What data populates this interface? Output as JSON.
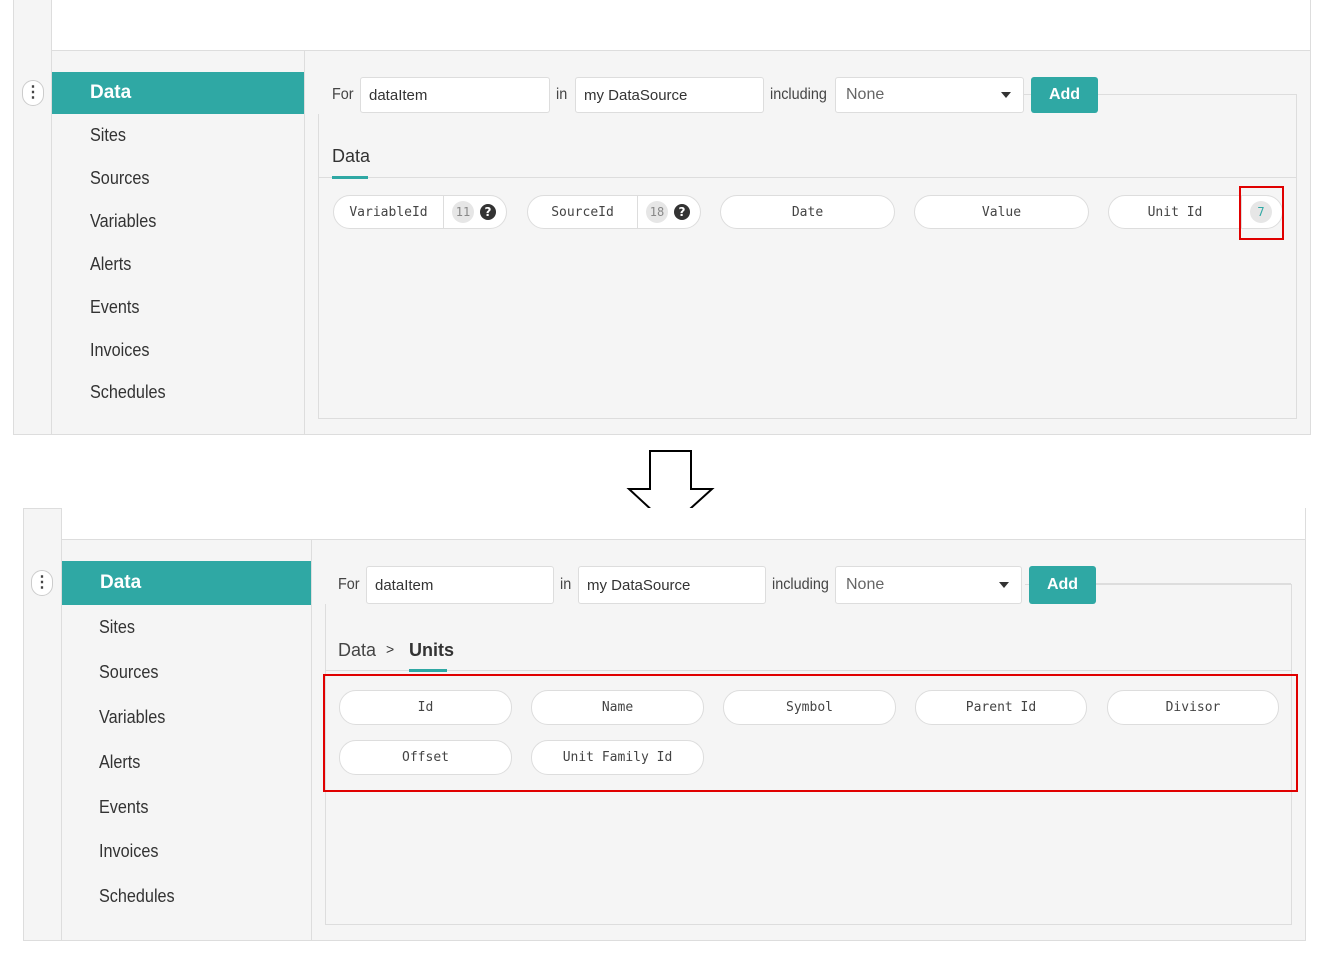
{
  "before": {
    "sidebar": {
      "items": [
        "Data",
        "Sites",
        "Sources",
        "Variables",
        "Alerts",
        "Events",
        "Invoices",
        "Schedules"
      ]
    },
    "query": {
      "for_label": "For",
      "item_value": "dataItem",
      "in_label": "in",
      "source_value": "my DataSource",
      "including_label": "including",
      "including_value": "None",
      "add_label": "Add"
    },
    "tab": "Data",
    "fields": [
      {
        "label": "VariableId",
        "count": "11",
        "help": "?"
      },
      {
        "label": "SourceId",
        "count": "18",
        "help": "?"
      },
      {
        "label": "Date"
      },
      {
        "label": "Value"
      },
      {
        "label": "Unit Id",
        "count": "7"
      }
    ]
  },
  "after": {
    "sidebar": {
      "items": [
        "Data",
        "Sites",
        "Sources",
        "Variables",
        "Alerts",
        "Events",
        "Invoices",
        "Schedules"
      ]
    },
    "query": {
      "for_label": "For",
      "item_value": "dataItem",
      "in_label": "in",
      "source_value": "my DataSource",
      "including_label": "including",
      "including_value": "None",
      "add_label": "Add"
    },
    "breadcrumb": {
      "root": "Data",
      "separator": ">",
      "current": "Units"
    },
    "fields": [
      "Id",
      "Name",
      "Symbol",
      "Parent Id",
      "Divisor",
      "Offset",
      "Unit Family Id"
    ]
  },
  "colors": {
    "accent": "#2fa8a4",
    "highlight": "#e00000"
  }
}
